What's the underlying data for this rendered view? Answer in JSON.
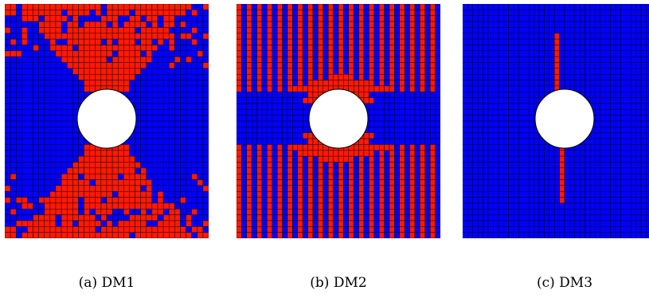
{
  "figure": {
    "colors": {
      "red": "#ff1a00",
      "blue": "#0000ff",
      "mesh_line": "#000000",
      "hole": "#ffffff"
    },
    "panels": [
      {
        "id": "a",
        "caption": "(a) DM1",
        "pattern": "DM1 red lobes above and below hole, blue band along horizontal center and corner wedges"
      },
      {
        "id": "b",
        "caption": "(b) DM2",
        "pattern": "DM2 vertical red/blue stripes, blue horizontal band with red arch around hole"
      },
      {
        "id": "c",
        "caption": "(c) DM3",
        "pattern": "DM3 all blue with thin vertical red strip above and below hole"
      }
    ]
  }
}
